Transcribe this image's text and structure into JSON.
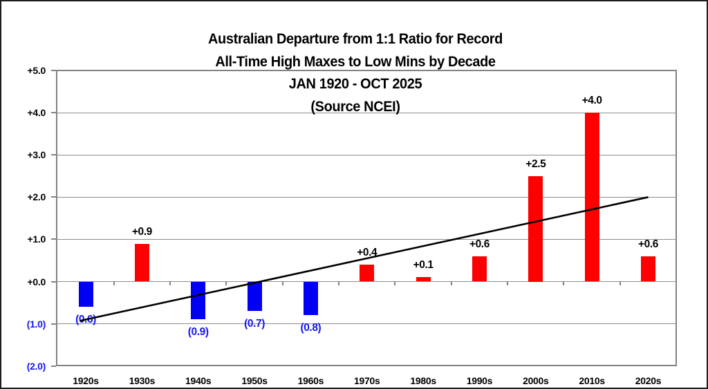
{
  "chart_data": {
    "type": "bar",
    "title_lines": [
      "Australian Departure from 1:1 Ratio for Record",
      "All-Time High Maxes to Low Mins by Decade",
      "JAN 1920 - OCT 2025",
      "(Source NCEI)"
    ],
    "categories": [
      "1920s",
      "1930s",
      "1940s",
      "1950s",
      "1960s",
      "1970s",
      "1980s",
      "1990s",
      "2000s",
      "2010s",
      "2020s"
    ],
    "values": [
      -0.6,
      0.9,
      -0.9,
      -0.7,
      -0.8,
      0.4,
      0.1,
      0.6,
      2.5,
      4.0,
      0.6
    ],
    "bar_labels": [
      "(0.6)",
      "+0.9",
      "(0.9)",
      "(0.7)",
      "(0.8)",
      "+0.4",
      "+0.1",
      "+0.6",
      "+2.5",
      "+4.0",
      "+0.6"
    ],
    "y_ticks": [
      {
        "label": "+5.0",
        "value": 5
      },
      {
        "label": "+4.0",
        "value": 4
      },
      {
        "label": "+3.0",
        "value": 3
      },
      {
        "label": "+2.0",
        "value": 2
      },
      {
        "label": "+1.0",
        "value": 1
      },
      {
        "label": "+0.0",
        "value": 0
      },
      {
        "label": "(1.0)",
        "value": -1
      },
      {
        "label": "(2.0)",
        "value": -2
      }
    ],
    "ylim": [
      -2,
      5
    ],
    "xlabel": "",
    "ylabel": "",
    "grid": true,
    "legend": "none",
    "trendline": {
      "start_category": "1920s",
      "start_value": -0.9,
      "end_category": "2020s",
      "end_value": 2.0
    },
    "colors": {
      "positive_bar": "#fe0000",
      "negative_bar": "#0000f5",
      "positive_label": "#000000",
      "negative_label": "#1414f0",
      "gridline": "#8c8c8c",
      "plot_border": "#828282",
      "trendline": "#000000",
      "title": "#000000"
    }
  }
}
